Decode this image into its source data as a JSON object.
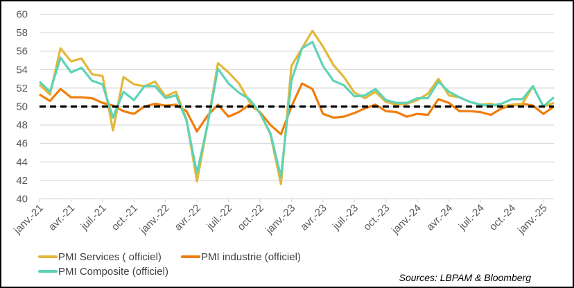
{
  "chart_data": {
    "type": "line",
    "title": "",
    "xlabel": "",
    "ylabel": "",
    "ylim": [
      40,
      60
    ],
    "yticks": [
      40,
      42,
      44,
      46,
      48,
      50,
      52,
      54,
      56,
      58,
      60
    ],
    "grid": true,
    "legend_position": "bottom",
    "x_start": "2021-01",
    "x_end": "2025-02",
    "xtick_labels": [
      "janv.-21",
      "avr.-21",
      "juil.-21",
      "oct.-21",
      "janv.-22",
      "avr.-22",
      "juil.-22",
      "oct.-22",
      "janv.-23",
      "avr.-23",
      "juil.-23",
      "oct.-23",
      "janv.-24",
      "avr.-24",
      "juil.-24",
      "oct.-24",
      "janv.-25"
    ],
    "reference_line": {
      "y": 50,
      "style": "dashed",
      "color": "#000000"
    },
    "series": [
      {
        "name": "PMI Services ( officiel)",
        "color": "#E3B73A",
        "values": [
          52.4,
          51.3,
          56.3,
          54.9,
          55.2,
          53.5,
          53.3,
          47.4,
          53.2,
          52.4,
          52.2,
          52.7,
          51.1,
          51.6,
          48.6,
          41.9,
          48.0,
          54.7,
          53.7,
          52.5,
          50.5,
          49.3,
          47.0,
          41.6,
          54.4,
          56.3,
          58.2,
          56.5,
          54.5,
          53.2,
          51.5,
          50.9,
          51.6,
          50.5,
          50.2,
          50.3,
          50.7,
          51.4,
          53.0,
          51.2,
          51.0,
          50.5,
          50.2,
          50.3,
          50.0,
          50.2,
          50.3,
          52.2,
          50.0,
          50.4
        ]
      },
      {
        "name": "PMI industrie (officiel)",
        "color": "#F07D0B",
        "values": [
          51.3,
          50.6,
          51.9,
          51.0,
          51.0,
          50.9,
          50.4,
          50.1,
          49.5,
          49.2,
          50.0,
          50.3,
          50.1,
          50.2,
          49.5,
          47.3,
          49.0,
          50.2,
          48.9,
          49.4,
          50.2,
          49.4,
          48.0,
          47.0,
          50.0,
          52.5,
          51.9,
          49.2,
          48.8,
          48.9,
          49.3,
          49.8,
          50.2,
          49.5,
          49.4,
          48.9,
          49.2,
          49.1,
          50.8,
          50.4,
          49.5,
          49.5,
          49.4,
          49.1,
          49.8,
          50.1,
          50.3,
          50.1,
          49.2,
          50.0
        ]
      },
      {
        "name": "PMI Composite (officiel)",
        "color": "#5DD3B8",
        "values": [
          52.7,
          51.6,
          55.3,
          53.7,
          54.2,
          52.8,
          52.4,
          48.8,
          51.6,
          50.7,
          52.2,
          52.2,
          50.9,
          51.2,
          48.5,
          42.8,
          48.0,
          54.1,
          52.5,
          51.5,
          50.8,
          49.3,
          47.1,
          42.4,
          52.8,
          56.3,
          57.0,
          54.4,
          52.8,
          52.3,
          51.1,
          51.2,
          51.9,
          50.7,
          50.4,
          50.4,
          50.9,
          50.9,
          52.7,
          51.6,
          51.0,
          50.5,
          50.2,
          50.1,
          50.3,
          50.8,
          50.8,
          52.2,
          50.0,
          51.0
        ]
      }
    ]
  },
  "source": "Sources: LBPAM & Bloomberg"
}
